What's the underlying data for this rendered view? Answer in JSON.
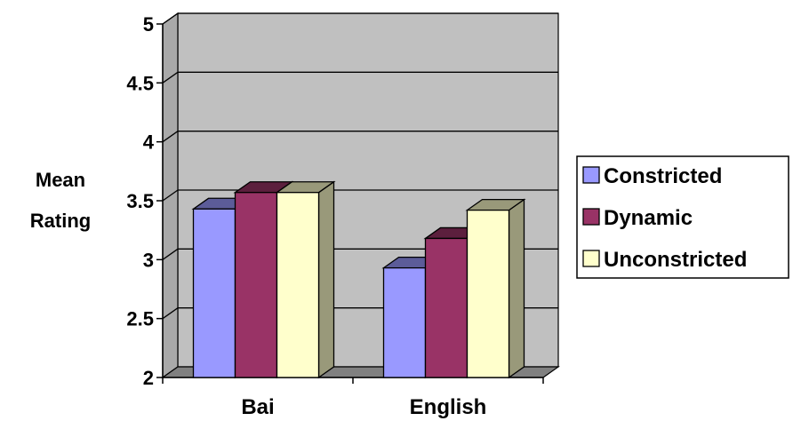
{
  "chart_data": {
    "type": "bar",
    "style": "3d-clustered-column",
    "categories": [
      "Bai",
      "English"
    ],
    "series": [
      {
        "name": "Constricted",
        "values": [
          3.43,
          2.93
        ],
        "color": "#9999FF",
        "side_color": "#5C5C99"
      },
      {
        "name": "Dynamic",
        "values": [
          3.57,
          3.18
        ],
        "color": "#993366",
        "side_color": "#5C1F3D"
      },
      {
        "name": "Unconstricted",
        "values": [
          3.57,
          3.42
        ],
        "color": "#FFFFCC",
        "side_color": "#99997A"
      }
    ],
    "ylabel_lines": [
      "Mean",
      "Rating"
    ],
    "ylim": [
      2,
      5
    ],
    "yticks": [
      "2",
      "2.5",
      "3",
      "3.5",
      "4",
      "4.5",
      "5"
    ],
    "grid": true,
    "wall_color": "#C0C0C0",
    "floor_color": "#808080",
    "legend_position": "right"
  }
}
